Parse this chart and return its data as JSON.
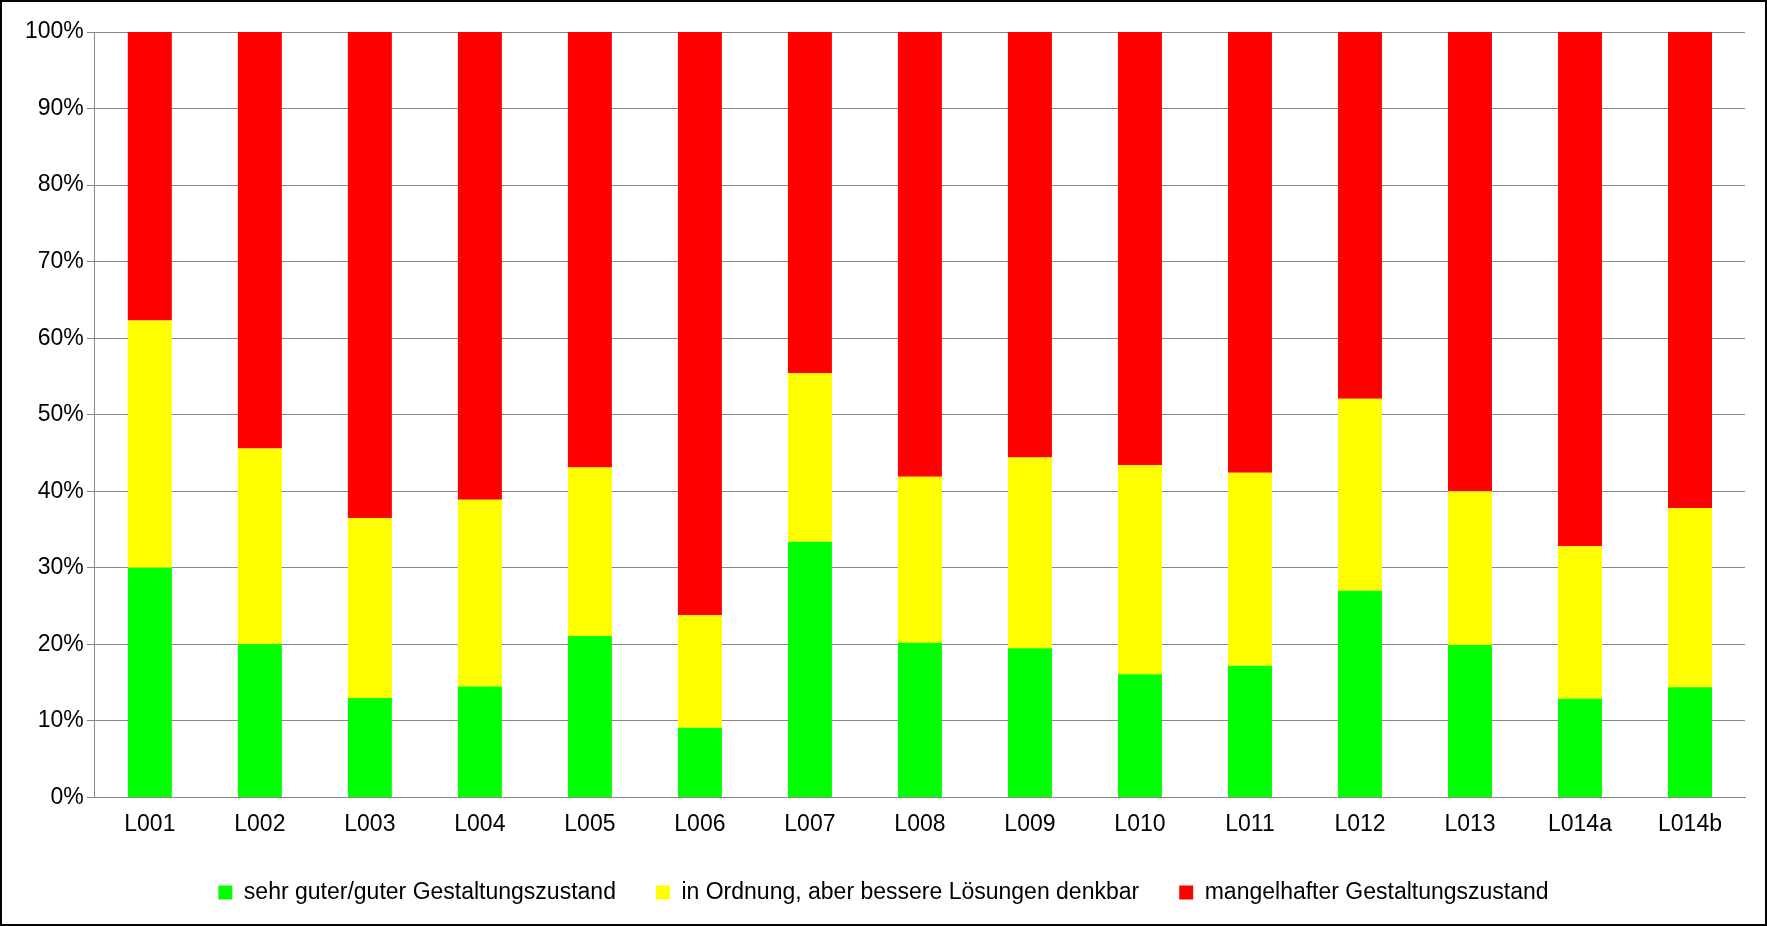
{
  "chart_data": {
    "type": "bar",
    "stacked": true,
    "categories": [
      "L001",
      "L002",
      "L003",
      "L004",
      "L005",
      "L006",
      "L007",
      "L008",
      "L009",
      "L010",
      "L011",
      "L012",
      "L013",
      "L014a",
      "L014b"
    ],
    "series": [
      {
        "name": "sehr guter/guter Gestaltungszustand",
        "color": "#00ff00",
        "values": [
          30,
          20,
          13,
          14.5,
          21.1,
          9.1,
          33.4,
          20.2,
          19.5,
          16.1,
          17.2,
          27,
          19.9,
          12.9,
          14.4
        ]
      },
      {
        "name": "in Ordnung, aber bessere Lösungen denkbar",
        "color": "#ffff00",
        "values": [
          32.3,
          25.6,
          23.5,
          24.4,
          22,
          14.7,
          22,
          21.7,
          24.9,
          27.3,
          25.2,
          25.1,
          20.1,
          19.9,
          23.4
        ]
      },
      {
        "name": "mangelhafter Gestaltungszustand",
        "color": "#ff0000",
        "values": [
          37.7,
          54.4,
          63.5,
          61.1,
          56.9,
          76.2,
          44.6,
          58.1,
          55.6,
          56.6,
          57.6,
          47.9,
          60,
          67.2,
          62.2
        ]
      }
    ],
    "ylim": [
      0,
      100
    ],
    "yticks": [
      {
        "value": 0,
        "label": "0%"
      },
      {
        "value": 10,
        "label": "10%"
      },
      {
        "value": 20,
        "label": "20%"
      },
      {
        "value": 30,
        "label": "30%"
      },
      {
        "value": 40,
        "label": "40%"
      },
      {
        "value": 50,
        "label": "50%"
      },
      {
        "value": 60,
        "label": "60%"
      },
      {
        "value": 70,
        "label": "70%"
      },
      {
        "value": 80,
        "label": "80%"
      },
      {
        "value": 90,
        "label": "90%"
      },
      {
        "value": 100,
        "label": "100%"
      }
    ],
    "grid": "y",
    "legend": "bottom"
  }
}
